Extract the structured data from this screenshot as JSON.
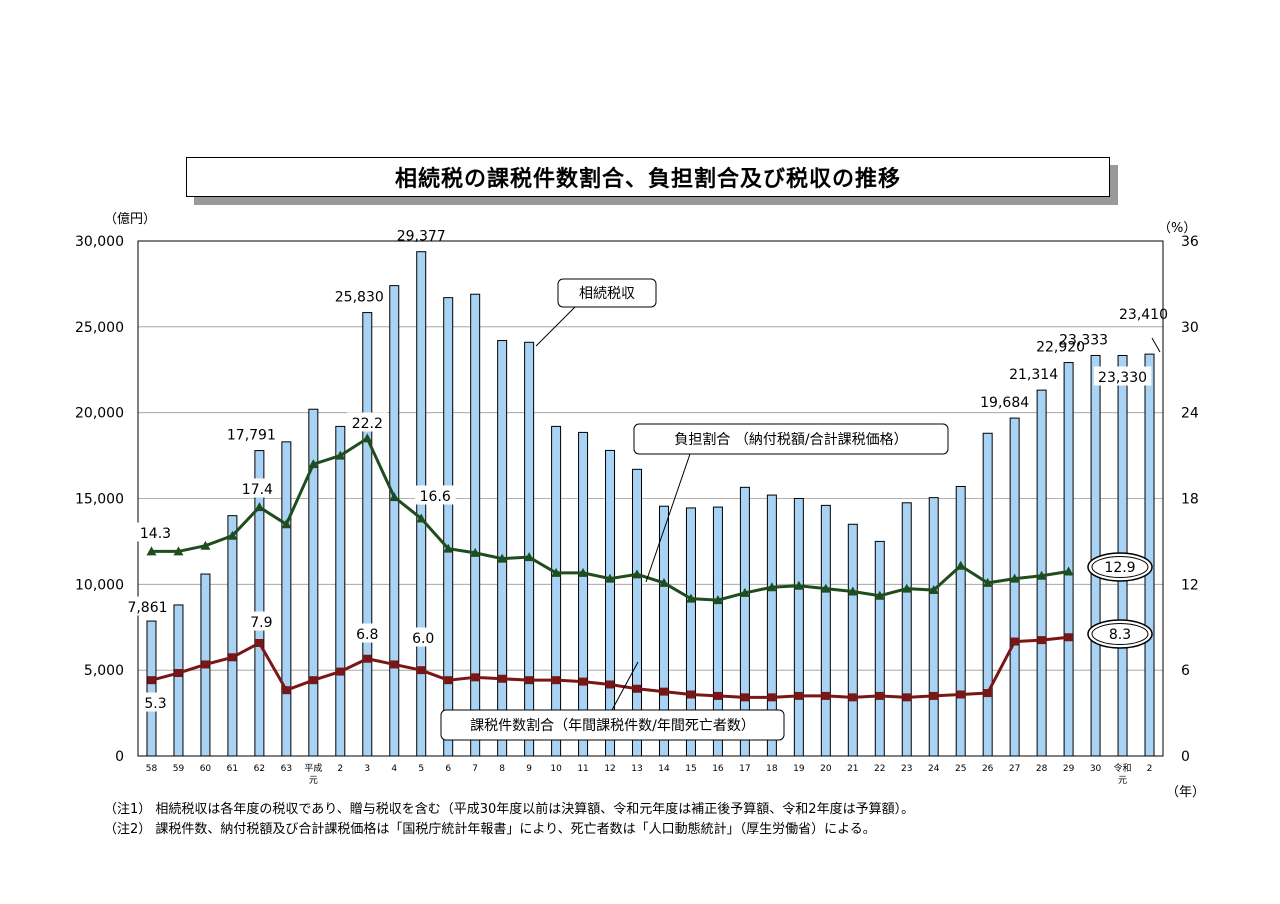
{
  "chart_data": {
    "type": "bar",
    "title": "相続税の課税件数割合、負担割合及び税収の推移",
    "left_axis_unit": "（億円）",
    "right_axis_unit": "（%）",
    "x_axis_unit": "（年）",
    "categories": [
      "58",
      "59",
      "60",
      "61",
      "62",
      "63",
      "平成元",
      "2",
      "3",
      "4",
      "5",
      "6",
      "7",
      "8",
      "9",
      "10",
      "11",
      "12",
      "13",
      "14",
      "15",
      "16",
      "17",
      "18",
      "19",
      "20",
      "21",
      "22",
      "23",
      "24",
      "25",
      "26",
      "27",
      "28",
      "29",
      "30",
      "令和元",
      "2"
    ],
    "left_ylim": [
      0,
      30000
    ],
    "left_ticks": [
      "0",
      "5,000",
      "10,000",
      "15,000",
      "20,000",
      "25,000",
      "30,000"
    ],
    "right_ylim": [
      0,
      36
    ],
    "right_ticks": [
      "0",
      "6",
      "12",
      "18",
      "24",
      "30",
      "36"
    ],
    "series": [
      {
        "name": "相続税収",
        "type": "bar",
        "color": "#a9d3f5",
        "values": [
          7861,
          8800,
          10600,
          14000,
          17791,
          18300,
          20200,
          19200,
          25830,
          27400,
          29377,
          26700,
          26900,
          24200,
          24100,
          19200,
          18850,
          17800,
          16700,
          14550,
          14450,
          14500,
          15650,
          15200,
          15000,
          14600,
          13500,
          12500,
          14750,
          15050,
          15700,
          18800,
          19684,
          21314,
          22920,
          23333,
          23330,
          23410
        ]
      },
      {
        "name": "負担割合 （納付税額/合計課税価格）",
        "type": "line",
        "color": "#1f4d1f",
        "marker": "triangle",
        "values": [
          14.3,
          14.3,
          14.7,
          15.4,
          17.4,
          16.2,
          20.4,
          21.0,
          22.2,
          18.1,
          16.6,
          14.5,
          14.2,
          13.8,
          13.9,
          12.8,
          12.8,
          12.4,
          12.7,
          12.1,
          11.0,
          10.9,
          11.4,
          11.8,
          11.9,
          11.7,
          11.5,
          11.2,
          11.7,
          11.6,
          13.3,
          12.1,
          12.4,
          12.6,
          12.9,
          null,
          null,
          null
        ]
      },
      {
        "name": "課税件数割合（年間課税件数/年間死亡者数）",
        "type": "line",
        "color": "#7a1616",
        "marker": "square",
        "values": [
          5.3,
          5.8,
          6.4,
          6.9,
          7.9,
          4.6,
          5.3,
          5.9,
          6.8,
          6.4,
          6.0,
          5.3,
          5.5,
          5.4,
          5.3,
          5.3,
          5.2,
          5.0,
          4.7,
          4.5,
          4.3,
          4.2,
          4.1,
          4.1,
          4.2,
          4.2,
          4.1,
          4.2,
          4.1,
          4.2,
          4.3,
          4.4,
          8.0,
          8.1,
          8.3,
          null,
          null,
          null
        ]
      }
    ],
    "bar_labels": [
      {
        "index": 0,
        "text": "7,861"
      },
      {
        "index": 4,
        "text": "17,791"
      },
      {
        "index": 8,
        "text": "25,830"
      },
      {
        "index": 10,
        "text": "29,377"
      },
      {
        "index": 32,
        "text": "19,684"
      },
      {
        "index": 33,
        "text": "21,314"
      },
      {
        "index": 34,
        "text": "22,920"
      },
      {
        "index": 35,
        "text": "23,333"
      },
      {
        "index": 36,
        "text": "23,330"
      },
      {
        "index": 37,
        "text": "23,410"
      }
    ],
    "burden_labels": [
      {
        "index": 0,
        "text": "14.3"
      },
      {
        "index": 4,
        "text": "17.4"
      },
      {
        "index": 8,
        "text": "22.2"
      },
      {
        "index": 10,
        "text": "16.6"
      },
      {
        "index": 34,
        "text": "12.9"
      }
    ],
    "count_labels": [
      {
        "index": 0,
        "text": "5.3"
      },
      {
        "index": 4,
        "text": "7.9"
      },
      {
        "index": 8,
        "text": "6.8"
      },
      {
        "index": 10,
        "text": "6.0"
      },
      {
        "index": 34,
        "text": "8.3"
      }
    ],
    "callouts": {
      "tax_revenue": "相続税収",
      "burden_ratio": "負担割合 （納付税額/合計課税価格）",
      "taxable_ratio": "課税件数割合（年間課税件数/年間死亡者数）"
    },
    "notes": [
      "（注1） 相続税収は各年度の税収であり、贈与税収を含む（平成30年度以前は決算額、令和元年度は補正後予算額、令和2年度は予算額）。",
      "（注2） 課税件数、納付税額及び合計課税価格は「国税庁統計年報書」により、死亡者数は「人口動態統計」（厚生労働省）による。"
    ]
  }
}
